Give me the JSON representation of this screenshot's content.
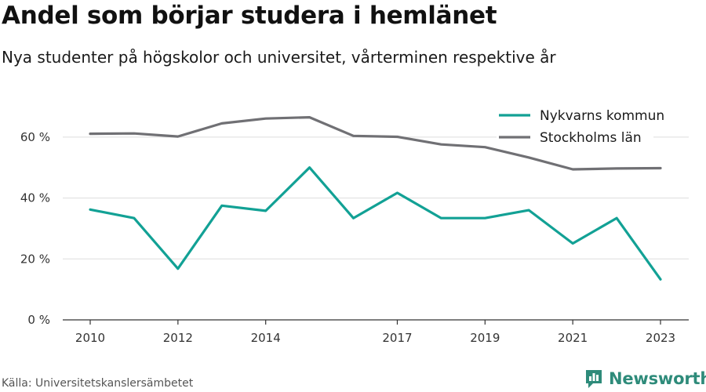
{
  "title": "Andel som börjar studera i hemlänet",
  "subtitle": "Nya studenter på högskolor och universitet, vårterminen respektive år",
  "source": "Källa: Universitetskanslersämbetet",
  "brand": {
    "name": "Newsworthy",
    "color": "#2e8b7a",
    "icon": "newsworthy-logo-icon"
  },
  "chart_data": {
    "type": "line",
    "x": [
      2010,
      2011,
      2012,
      2013,
      2014,
      2015,
      2016,
      2017,
      2018,
      2019,
      2020,
      2021,
      2022,
      2023
    ],
    "xticks": [
      2010,
      2012,
      2014,
      2017,
      2019,
      2021,
      2023
    ],
    "xtick_labels": [
      "2010",
      "2012",
      "2014",
      "2017",
      "2019",
      "2021",
      "2023"
    ],
    "xlim": [
      2010,
      2023
    ],
    "ylim": [
      0,
      70
    ],
    "yticks": [
      0,
      20,
      40,
      60
    ],
    "ytick_labels": [
      "0 %",
      "20 %",
      "40 %",
      "60 %"
    ],
    "grid": true,
    "legend_position": "top-right",
    "series": [
      {
        "name": "Nykvarns kommun",
        "color": "#12a195",
        "values": [
          36.2,
          33.4,
          16.8,
          37.5,
          35.8,
          50.0,
          33.4,
          41.7,
          33.4,
          33.4,
          36.0,
          25.1,
          33.4,
          13.3
        ]
      },
      {
        "name": "Stockholms län",
        "color": "#707074",
        "values": [
          61.1,
          61.2,
          60.2,
          64.5,
          66.1,
          66.5,
          60.4,
          60.1,
          57.6,
          56.7,
          53.3,
          49.4,
          49.7,
          49.8
        ]
      }
    ]
  }
}
